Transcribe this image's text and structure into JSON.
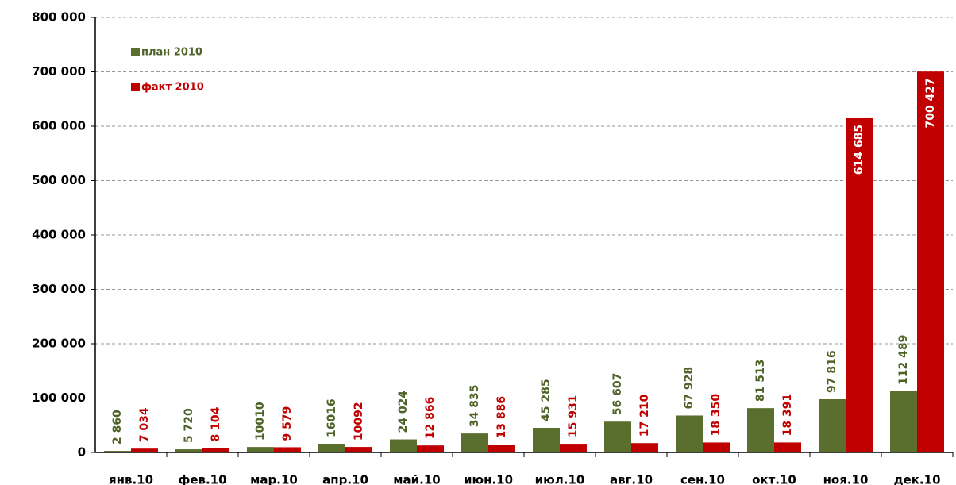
{
  "chart_data": {
    "type": "bar",
    "categories": [
      "янв.10",
      "фев.10",
      "мар.10",
      "апр.10",
      "май.10",
      "июн.10",
      "июл.10",
      "авг.10",
      "сен.10",
      "окт.10",
      "ноя.10",
      "дек.10"
    ],
    "series": [
      {
        "name": "план 2010",
        "color": "#5a6e2e",
        "label_color": "#4f6228",
        "values": [
          2860,
          5720,
          10010,
          16016,
          24024,
          34835,
          45285,
          56607,
          67928,
          81513,
          97816,
          112489
        ],
        "value_labels": [
          "2 860",
          "5 720",
          "10010",
          "16016",
          "24 024",
          "34 835",
          "45 285",
          "56 607",
          "67 928",
          "81 513",
          "97 816",
          "112 489"
        ]
      },
      {
        "name": "факт 2010",
        "color": "#c00000",
        "label_color": "#c00000",
        "values": [
          7034,
          8104,
          9579,
          10092,
          12866,
          13886,
          15931,
          17210,
          18350,
          18391,
          614685,
          700427
        ],
        "value_labels": [
          "7 034",
          "8 104",
          "9 579",
          "10092",
          "12 866",
          "13 886",
          "15 931",
          "17 210",
          "18 350",
          "18 391",
          "614 685",
          "700 427"
        ]
      }
    ],
    "ylim": [
      0,
      800000
    ],
    "yticks": [
      0,
      {
        "value": 100000,
        "label": "100 000"
      },
      {
        "value": 200000,
        "label": "200 000"
      },
      {
        "value": 300000,
        "label": "300 000"
      },
      {
        "value": 400000,
        "label": "400 000"
      },
      {
        "value": 500000,
        "label": "500 000"
      },
      {
        "value": 600000,
        "label": "600 000"
      },
      {
        "value": 700000,
        "label": "700 000"
      },
      {
        "value": 800000,
        "label": "800 000"
      }
    ],
    "grid": true,
    "legend": "upper left"
  }
}
